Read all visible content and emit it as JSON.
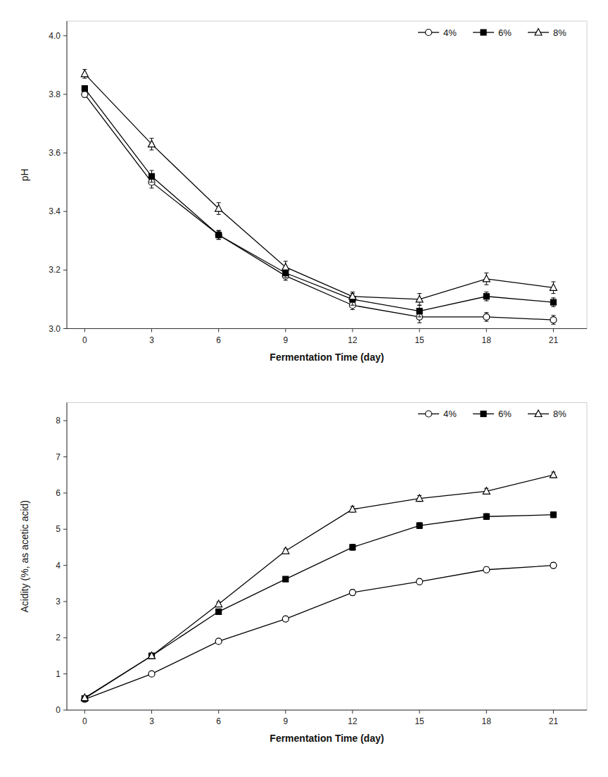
{
  "chart_data": [
    {
      "type": "line",
      "x_label": "Fermentation Time (day)",
      "y_label": "pH",
      "x": [
        0,
        3,
        6,
        9,
        12,
        15,
        18,
        21
      ],
      "xlim": [
        -0.8,
        22.5
      ],
      "xticks": [
        0,
        3,
        6,
        9,
        12,
        15,
        18,
        21
      ],
      "ylim": [
        3.0,
        4.05
      ],
      "yticks": [
        {
          "value": 3.0,
          "label": "3.0"
        },
        3.2,
        3.4,
        3.6,
        3.8,
        {
          "value": 4.0,
          "label": "4.0"
        }
      ],
      "grid": false,
      "legend": "upper-right",
      "series": [
        {
          "name": "4%",
          "color": "#000000",
          "marker": "circle-open",
          "values": [
            3.8,
            3.5,
            3.32,
            3.18,
            3.08,
            3.04,
            3.04,
            3.03
          ],
          "errors": [
            0.01,
            0.02,
            0.015,
            0.015,
            0.015,
            0.02,
            0.015,
            0.015
          ]
        },
        {
          "name": "6%",
          "color": "#000000",
          "marker": "square",
          "values": [
            3.82,
            3.52,
            3.32,
            3.19,
            3.1,
            3.06,
            3.11,
            3.09
          ],
          "errors": [
            0.01,
            0.02,
            0.015,
            0.015,
            0.02,
            0.02,
            0.015,
            0.015
          ]
        },
        {
          "name": "8%",
          "color": "#000000",
          "marker": "triangle-open",
          "values": [
            3.87,
            3.63,
            3.41,
            3.21,
            3.11,
            3.1,
            3.17,
            3.14
          ],
          "errors": [
            0.015,
            0.02,
            0.02,
            0.02,
            0.015,
            0.02,
            0.02,
            0.02
          ]
        }
      ]
    },
    {
      "type": "line",
      "x_label": "Fermentation Time (day)",
      "y_label": "Acidity (%, as acetic acid)",
      "x": [
        0,
        3,
        6,
        9,
        12,
        15,
        18,
        21
      ],
      "xlim": [
        -0.8,
        22.5
      ],
      "xticks": [
        0,
        3,
        6,
        9,
        12,
        15,
        18,
        21
      ],
      "ylim": [
        0,
        8.5
      ],
      "yticks": [
        0,
        1,
        2,
        3,
        4,
        5,
        6,
        7,
        8
      ],
      "grid": false,
      "legend": "upper-right",
      "series": [
        {
          "name": "4%",
          "color": "#000000",
          "marker": "circle-open",
          "values": [
            0.3,
            1.0,
            1.9,
            2.52,
            3.25,
            3.55,
            3.88,
            4.0
          ],
          "errors": [
            0.02,
            0.05,
            0.06,
            0.06,
            0.08,
            0.08,
            0.08,
            0.08
          ]
        },
        {
          "name": "6%",
          "color": "#000000",
          "marker": "square",
          "values": [
            0.32,
            1.5,
            2.72,
            3.62,
            4.5,
            5.1,
            5.35,
            5.4
          ],
          "errors": [
            0.02,
            0.05,
            0.06,
            0.06,
            0.08,
            0.08,
            0.08,
            0.08
          ]
        },
        {
          "name": "8%",
          "color": "#000000",
          "marker": "triangle-open",
          "values": [
            0.34,
            1.5,
            2.93,
            4.4,
            5.55,
            5.85,
            6.05,
            6.5
          ],
          "errors": [
            0.02,
            0.05,
            0.06,
            0.06,
            0.08,
            0.08,
            0.08,
            0.08
          ]
        }
      ]
    }
  ]
}
